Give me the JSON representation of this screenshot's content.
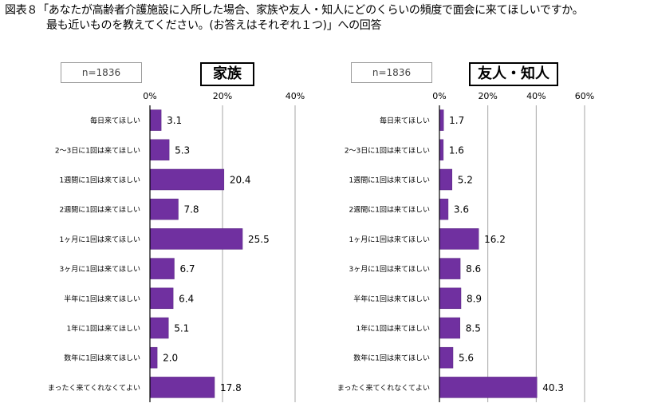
{
  "header": {
    "line1": "図表８「あなたが高齢者介護施設に入所した場合、家族や友人・知人にどのくらいの頻度で面会に来てほしいですか。",
    "line2": "最も近いものを教えてください。(お答えはそれぞれ１つ)」への回答"
  },
  "colors": {
    "bar": "#7030a0",
    "bar_edge": "#5a2a82",
    "grid": "#a6a6a6",
    "axis": "#000000"
  },
  "chart_data": [
    {
      "type": "bar",
      "orientation": "horizontal",
      "title": "家族",
      "n_label": "n=1836",
      "categories": [
        "毎日来てほしい",
        "2～3日に1回は来てほしい",
        "1週間に1回は来てほしい",
        "2週間に1回は来てほしい",
        "1ヶ月に1回は来てほしい",
        "3ヶ月に1回は来てほしい",
        "半年に1回は来てほしい",
        "1年に1回は来てほしい",
        "数年に1回は来てほしい",
        "まったく来てくれなくてよい"
      ],
      "values": [
        3.1,
        5.3,
        20.4,
        7.8,
        25.5,
        6.7,
        6.4,
        5.1,
        2.0,
        17.8
      ],
      "value_labels": [
        "3.1",
        "5.3",
        "20.4",
        "7.8",
        "25.5",
        "6.7",
        "6.4",
        "5.1",
        "2.0",
        "17.8"
      ],
      "ticks": [
        "0%",
        "20%",
        "40%"
      ],
      "xlim": [
        0,
        40
      ],
      "grid": true
    },
    {
      "type": "bar",
      "orientation": "horizontal",
      "title": "友人・知人",
      "n_label": "n=1836",
      "categories": [
        "毎日来てほしい",
        "2～3日に1回は来てほしい",
        "1週間に1回は来てほしい",
        "2週間に1回は来てほしい",
        "1ヶ月に1回は来てほしい",
        "3ヶ月に1回は来てほしい",
        "半年に1回は来てほしい",
        "1年に1回は来てほしい",
        "数年に1回は来てほしい",
        "まったく来てくれなくてよい"
      ],
      "values": [
        1.7,
        1.6,
        5.2,
        3.6,
        16.2,
        8.6,
        8.9,
        8.5,
        5.6,
        40.3
      ],
      "value_labels": [
        "1.7",
        "1.6",
        "5.2",
        "3.6",
        "16.2",
        "8.6",
        "8.9",
        "8.5",
        "5.6",
        "40.3"
      ],
      "ticks": [
        "0%",
        "20%",
        "40%",
        "60%"
      ],
      "xlim": [
        0,
        60
      ],
      "grid": true
    }
  ]
}
